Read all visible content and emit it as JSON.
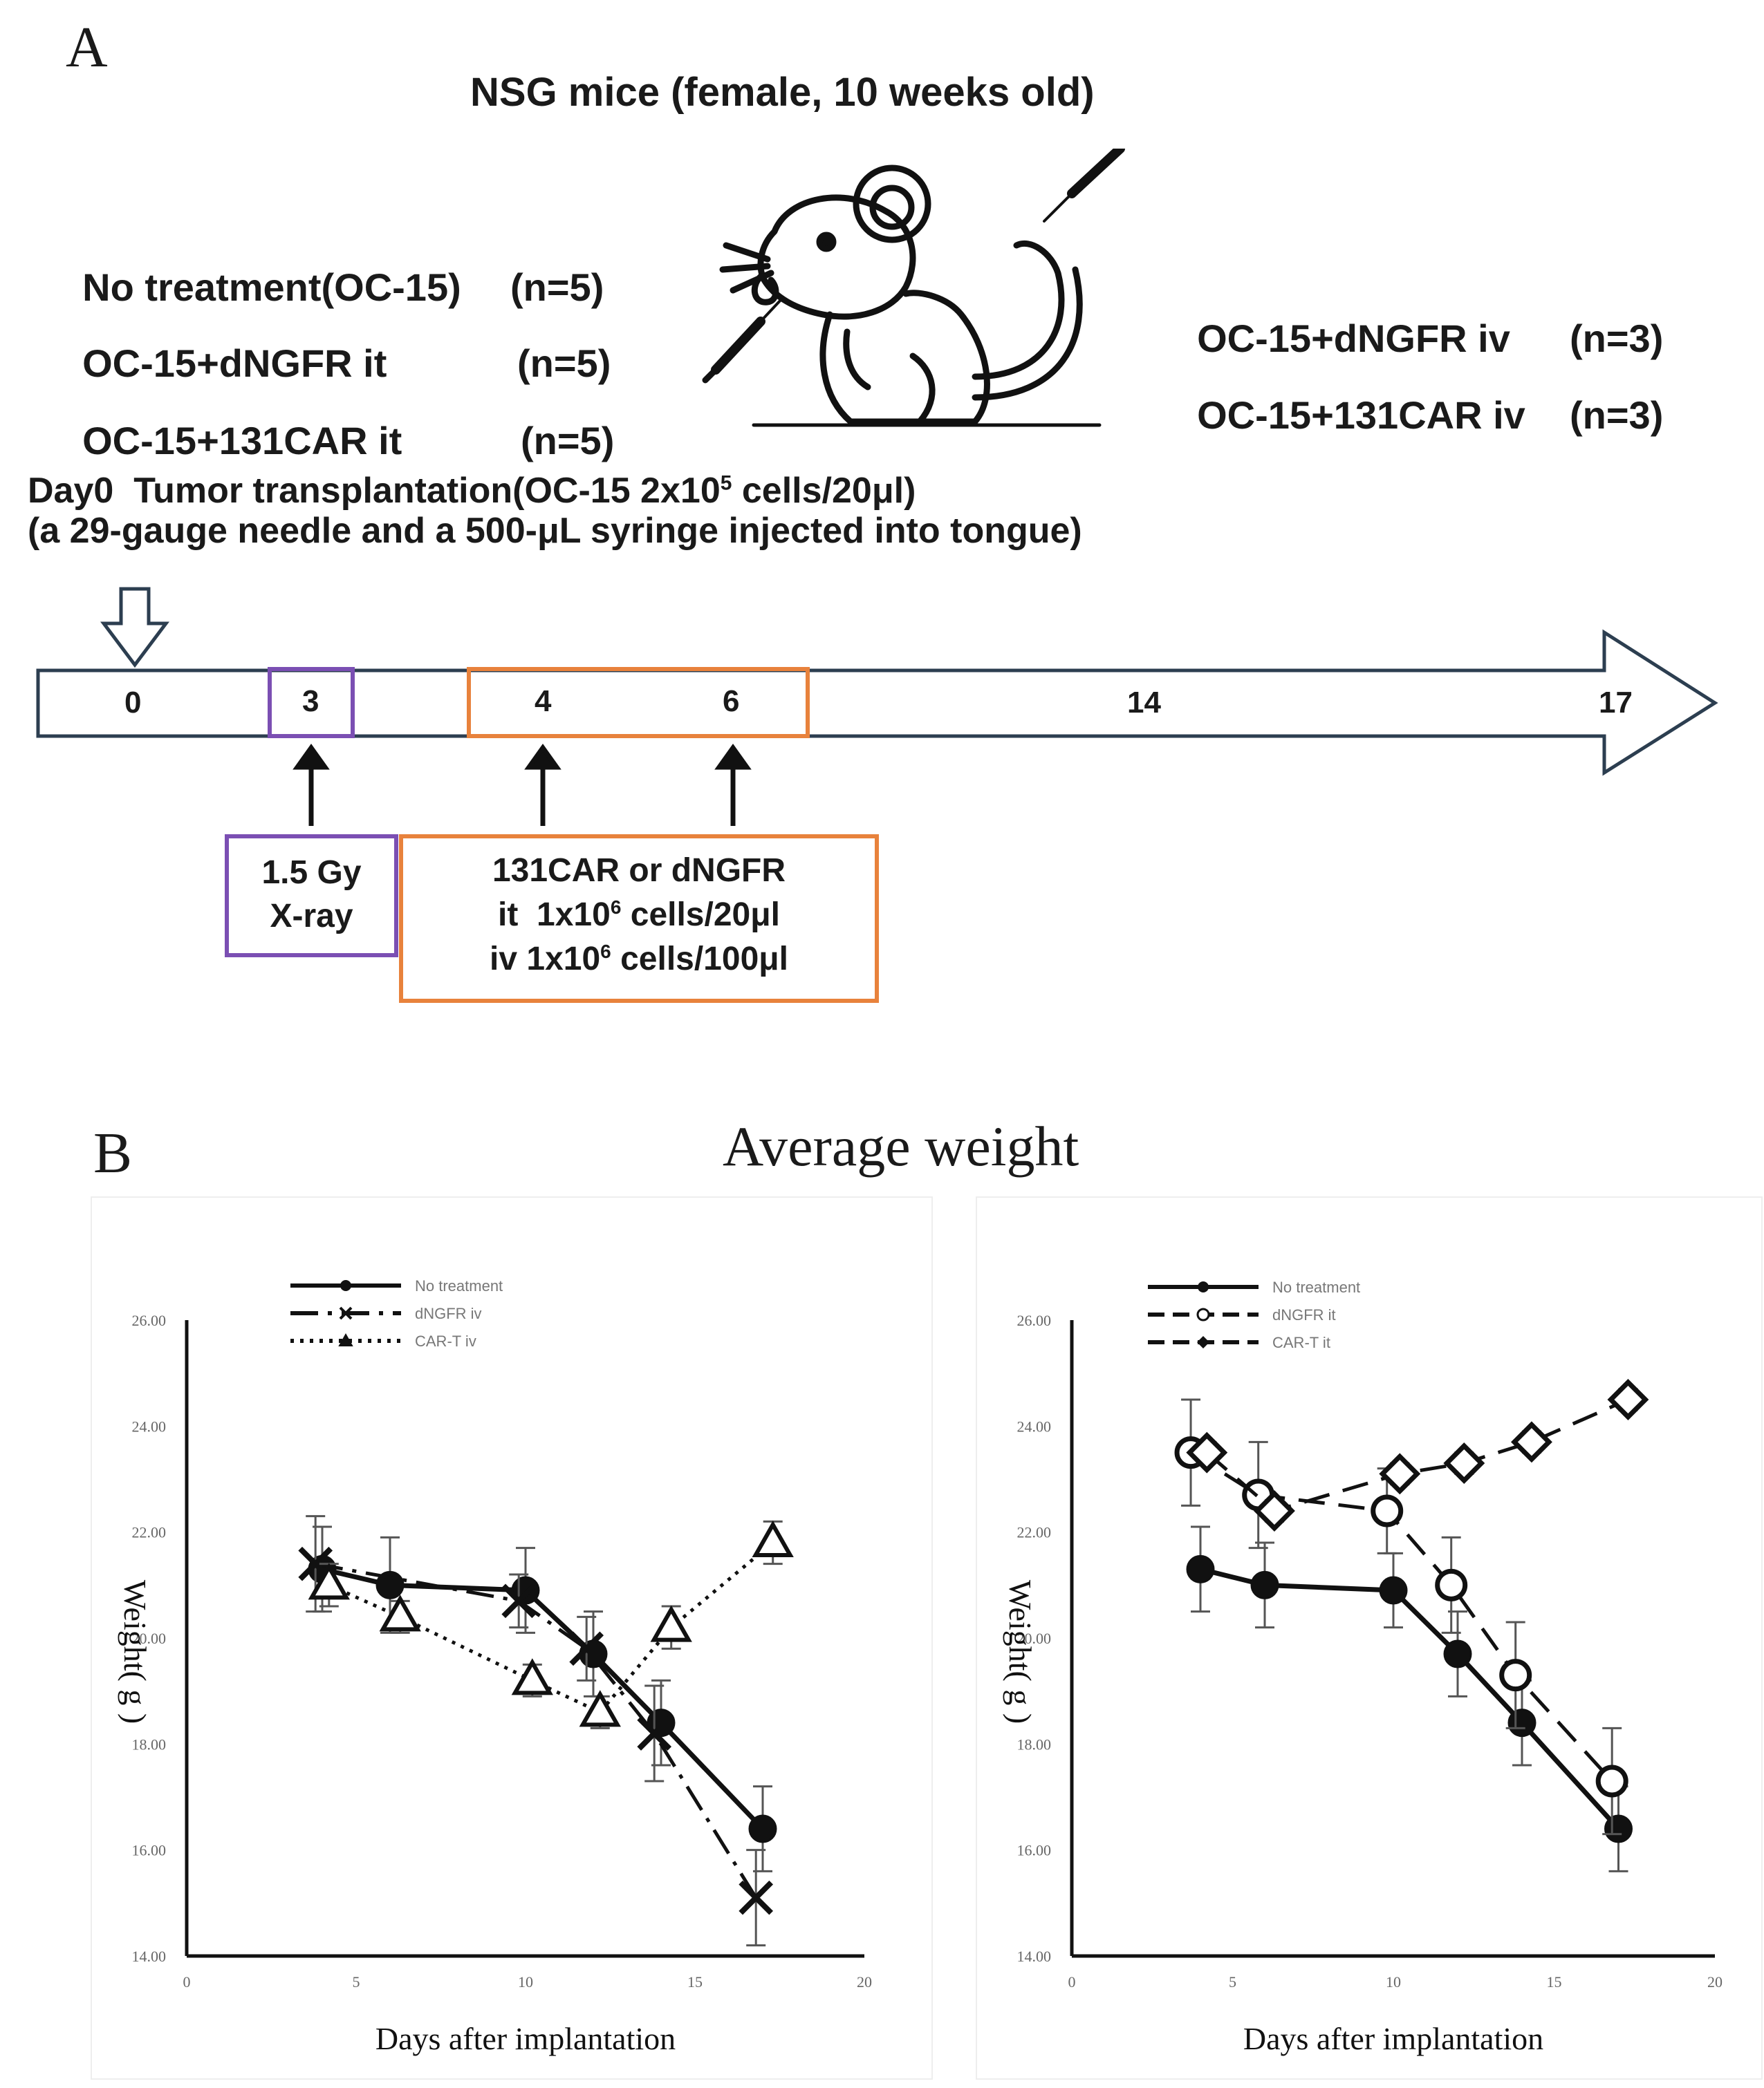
{
  "panel_a": {
    "letter": "A",
    "title": "NSG mice (female, 10 weeks old)",
    "groups_left": [
      {
        "name": "No treatment(OC-15)",
        "n": "(n=5)"
      },
      {
        "name": "OC-15+dNGFR it",
        "n": "(n=5)"
      },
      {
        "name": "OC-15+131CAR it",
        "n": "(n=5)"
      }
    ],
    "groups_right": [
      {
        "name": "OC-15+dNGFR iv",
        "n": "(n=3)"
      },
      {
        "name": "OC-15+131CAR iv",
        "n": "(n=3)"
      }
    ],
    "day0_line1_a": "Day0  Tumor transplantation(OC-15 2x10",
    "day0_line1_sup": "5",
    "day0_line1_b": " cells/20μl)",
    "day0_line2": "(a 29-gauge needle and a 500-μL syringe injected into tongue)",
    "timeline_days": [
      "0",
      "3",
      "4",
      "6",
      "14",
      "17"
    ],
    "xray_box": [
      "1.5 Gy",
      "X-ray"
    ],
    "treat_line1": "131CAR or dNGFR",
    "treat_line2_a": "it  1x10",
    "treat_line2_sup": "6",
    "treat_line2_b": " cells/20μl",
    "treat_line3_a": "iv 1x10",
    "treat_line3_sup": "6",
    "treat_line3_b": " cells/100μl",
    "colors": {
      "xray_box": "#7b4fb3",
      "treat_box": "#e8823c"
    }
  },
  "panel_b": {
    "letter": "B",
    "title": "Average weight"
  },
  "chart_data": [
    {
      "type": "line",
      "xlabel": "Days after implantation",
      "ylabel": "Weight( g )",
      "xlim": [
        0,
        20
      ],
      "ylim": [
        14,
        26
      ],
      "xticks": [
        "0",
        "5",
        "10",
        "15",
        "20"
      ],
      "yticks": [
        "14.00",
        "16.00",
        "18.00",
        "20.00",
        "22.00",
        "24.00",
        "26.00"
      ],
      "legend_position": "top-left",
      "series": [
        {
          "name": "No treatment",
          "style": "solid",
          "marker": "filled-circle",
          "x": [
            4,
            6,
            10,
            12,
            14,
            17
          ],
          "y": [
            21.3,
            21.0,
            20.9,
            19.7,
            18.4,
            16.4
          ],
          "err": [
            0.8,
            0.9,
            0.8,
            0.8,
            0.8,
            0.8
          ]
        },
        {
          "name": "dNGFR  iv",
          "style": "dashdot",
          "marker": "x",
          "x": [
            3.8,
            9.8,
            11.8,
            13.8,
            16.8
          ],
          "y": [
            21.4,
            20.7,
            19.8,
            18.2,
            15.1
          ],
          "err": [
            0.9,
            0.5,
            0.6,
            0.9,
            0.9
          ]
        },
        {
          "name": "CAR-T  iv",
          "style": "dotted",
          "marker": "open-triangle",
          "x": [
            4.2,
            6.3,
            10.2,
            12.2,
            14.3,
            17.3
          ],
          "y": [
            21.0,
            20.4,
            19.2,
            18.6,
            20.2,
            21.8
          ],
          "err": [
            0.4,
            0.3,
            0.3,
            0.3,
            0.4,
            0.4
          ]
        }
      ]
    },
    {
      "type": "line",
      "xlabel": "Days after implantation",
      "ylabel": "Weight( g )",
      "xlim": [
        0,
        20
      ],
      "ylim": [
        14,
        26
      ],
      "xticks": [
        "0",
        "5",
        "10",
        "15",
        "20"
      ],
      "yticks": [
        "14.00",
        "16.00",
        "18.00",
        "20.00",
        "22.00",
        "24.00",
        "26.00"
      ],
      "legend_position": "top-left",
      "series": [
        {
          "name": "No treatment",
          "style": "solid",
          "marker": "filled-circle",
          "x": [
            4,
            6,
            10,
            12,
            14,
            17
          ],
          "y": [
            21.3,
            21.0,
            20.9,
            19.7,
            18.4,
            16.4
          ],
          "err": [
            0.8,
            0.8,
            0.7,
            0.8,
            0.8,
            0.8
          ]
        },
        {
          "name": "dNGFR  it",
          "style": "dashed",
          "marker": "open-circle",
          "x": [
            3.7,
            5.8,
            9.8,
            11.8,
            13.8,
            16.8
          ],
          "y": [
            23.5,
            22.7,
            22.4,
            21.0,
            19.3,
            17.3
          ],
          "err": [
            1.0,
            1.0,
            0.8,
            0.9,
            1.0,
            1.0
          ]
        },
        {
          "name": "CAR-T  it",
          "style": "dashed",
          "marker": "open-diamond",
          "x": [
            4.2,
            6.3,
            10.2,
            12.2,
            14.3,
            17.3
          ],
          "y": [
            23.5,
            22.4,
            23.1,
            23.3,
            23.7,
            24.5
          ],
          "err": [
            0.2,
            0.2,
            0.2,
            0.2,
            0.2,
            0.2
          ]
        }
      ]
    }
  ]
}
